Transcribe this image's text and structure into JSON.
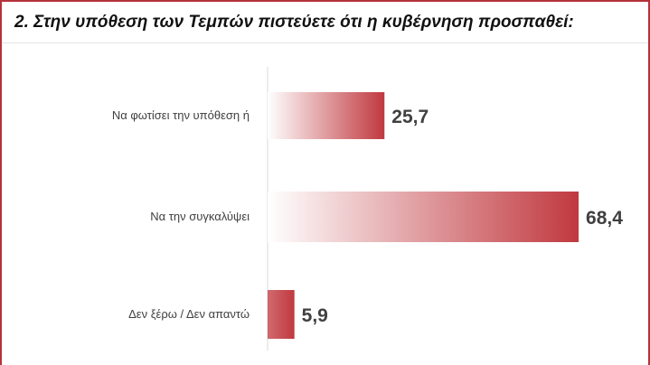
{
  "chart_data": {
    "type": "bar",
    "orientation": "horizontal",
    "title": "2. Στην υπόθεση των Τεμπών πιστεύετε ότι η κυβέρνηση προσπαθεί:",
    "categories": [
      "Να φωτίσει την υπόθεση ή",
      "Να την συγκαλύψει",
      "Δεν ξέρω / Δεν απαντώ"
    ],
    "values": [
      25.7,
      68.4,
      5.9
    ],
    "value_labels": [
      "25,7",
      "68,4",
      "5,9"
    ],
    "xlabel": "",
    "ylabel": "",
    "xlim": [
      0,
      70
    ],
    "grid": false,
    "legend": "none",
    "bar_color": "#c0393f",
    "bar_fade_color": "#ffffff"
  },
  "colors": {
    "accent": "#b5323a",
    "bar": "#c0393f",
    "text": "#404040",
    "axis": "#d9d9d9"
  }
}
